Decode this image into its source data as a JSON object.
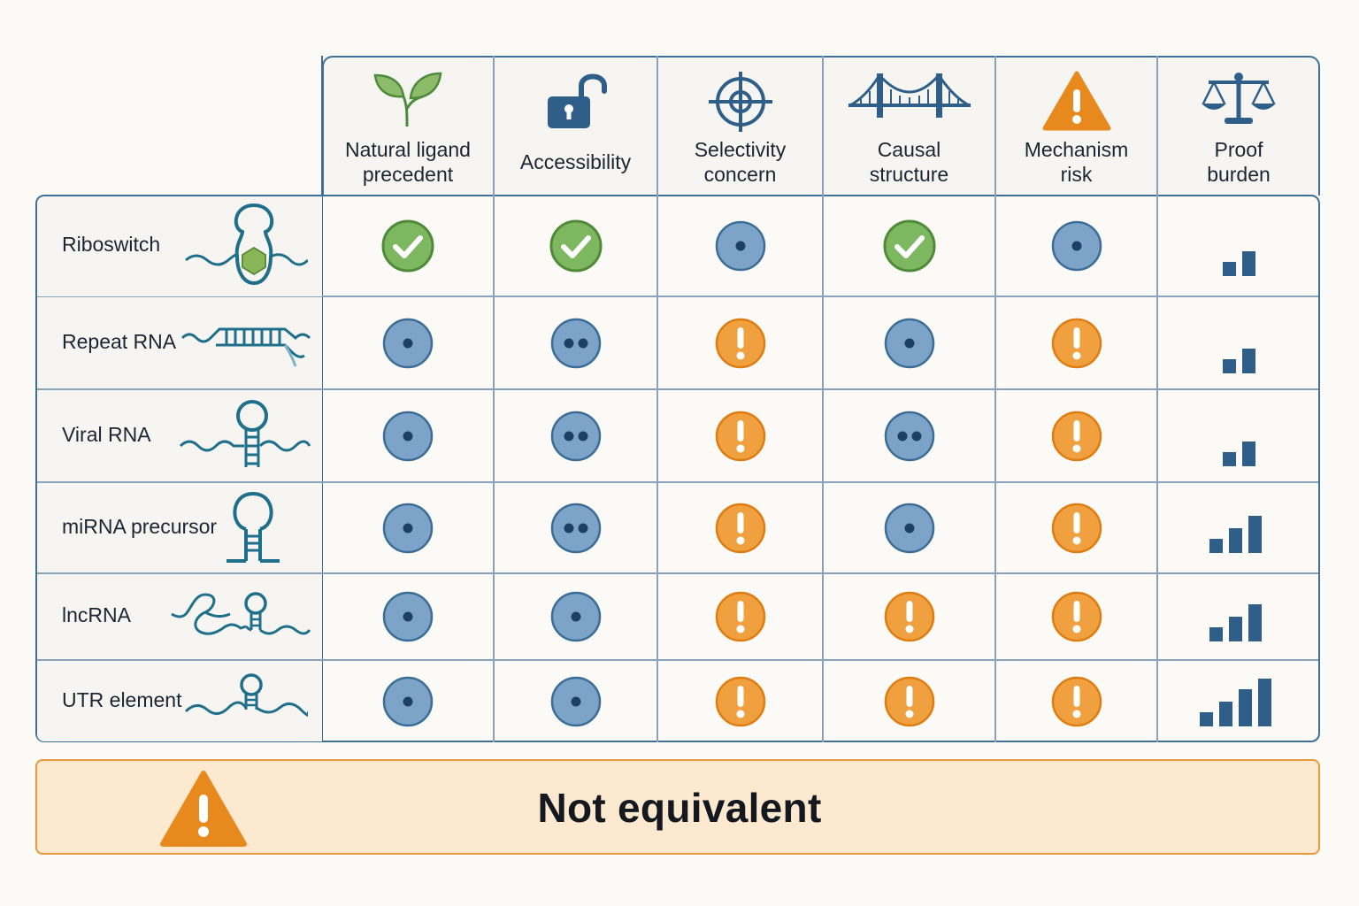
{
  "columns": [
    {
      "key": "natural",
      "label": "Natural ligand\nprecedent",
      "icon": "sprout-icon"
    },
    {
      "key": "access",
      "label": "Accessibility",
      "icon": "open-lock-icon"
    },
    {
      "key": "select",
      "label": "Selectivity\nconcern",
      "icon": "crosshair-icon"
    },
    {
      "key": "causal",
      "label": "Causal\nstructure",
      "icon": "bridge-icon"
    },
    {
      "key": "mech",
      "label": "Mechanism\nrisk",
      "icon": "warning-icon"
    },
    {
      "key": "proof",
      "label": "Proof\nburden",
      "icon": "balance-scale-icon"
    }
  ],
  "rows": [
    {
      "label": "Riboswitch",
      "glyph": "riboswitch-glyph",
      "cells": [
        "check",
        "check",
        "dot",
        "check",
        "dot"
      ],
      "proof_bars": 2
    },
    {
      "label": "Repeat RNA",
      "glyph": "repeat-rna-glyph",
      "cells": [
        "dot",
        "double-dot",
        "warning",
        "dot",
        "warning"
      ],
      "proof_bars": 2
    },
    {
      "label": "Viral RNA",
      "glyph": "viral-rna-glyph",
      "cells": [
        "dot",
        "double-dot",
        "warning",
        "double-dot",
        "warning"
      ],
      "proof_bars": 2
    },
    {
      "label": "miRNA precursor",
      "glyph": "mirna-glyph",
      "cells": [
        "dot",
        "double-dot",
        "warning",
        "dot",
        "warning"
      ],
      "proof_bars": 3
    },
    {
      "label": "lncRNA",
      "glyph": "lncrna-glyph",
      "cells": [
        "dot",
        "dot",
        "warning",
        "warning",
        "warning"
      ],
      "proof_bars": 3
    },
    {
      "label": "UTR element",
      "glyph": "utr-glyph",
      "cells": [
        "dot",
        "dot",
        "warning",
        "warning",
        "warning"
      ],
      "proof_bars": 4
    }
  ],
  "banner": {
    "text": "Not equivalent",
    "icon": "warning-icon"
  },
  "colors": {
    "check": "#6aa84f",
    "dot": "#7da4c8",
    "warning": "#f0a03e",
    "navy": "#2f5f88",
    "border": "#3f6f96"
  }
}
